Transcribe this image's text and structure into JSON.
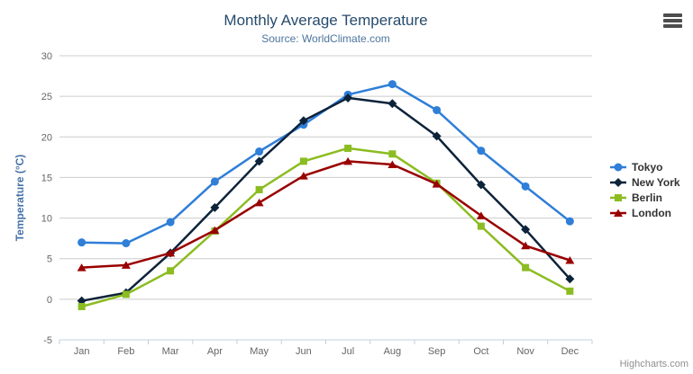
{
  "header": {
    "title": "Monthly Average Temperature",
    "subtitle": "Source: WorldClimate.com"
  },
  "credit_label": "Highcharts.com",
  "icons": {
    "context_menu": "hamburger-menu-icon"
  },
  "colors": {
    "title": "#274b6d",
    "subtitle": "#4d759e",
    "axis_title": "#4572a7",
    "tick_label": "#666666",
    "grid_line": "#cccccc",
    "axis_line": "#c0d0e0",
    "legend_text": "#333333",
    "credit": "#909090",
    "menu_icon": "#4d4d4d"
  },
  "chart_data": {
    "type": "line",
    "title": "Monthly Average Temperature",
    "subtitle": "Source: WorldClimate.com",
    "xlabel": "",
    "ylabel": "Temperature (°C)",
    "ylim": [
      -5,
      30
    ],
    "yticks": [
      -5,
      0,
      5,
      10,
      15,
      20,
      25,
      30
    ],
    "grid": true,
    "legend_position": "right",
    "categories": [
      "Jan",
      "Feb",
      "Mar",
      "Apr",
      "May",
      "Jun",
      "Jul",
      "Aug",
      "Sep",
      "Oct",
      "Nov",
      "Dec"
    ],
    "series": [
      {
        "name": "Tokyo",
        "color": "#2f7ed8",
        "marker": "circle",
        "values": [
          7.0,
          6.9,
          9.5,
          14.5,
          18.2,
          21.5,
          25.2,
          26.5,
          23.3,
          18.3,
          13.9,
          9.6
        ]
      },
      {
        "name": "New York",
        "color": "#0d233a",
        "marker": "diamond",
        "values": [
          -0.2,
          0.8,
          5.7,
          11.3,
          17.0,
          22.0,
          24.8,
          24.1,
          20.1,
          14.1,
          8.6,
          2.5
        ]
      },
      {
        "name": "Berlin",
        "color": "#8bbc21",
        "marker": "square",
        "values": [
          -0.9,
          0.6,
          3.5,
          8.4,
          13.5,
          17.0,
          18.6,
          17.9,
          14.3,
          9.0,
          3.9,
          1.0
        ]
      },
      {
        "name": "London",
        "color": "#990000",
        "marker": "triangle",
        "values": [
          3.9,
          4.2,
          5.7,
          8.5,
          11.9,
          15.2,
          17.0,
          16.6,
          14.2,
          10.3,
          6.6,
          4.8
        ]
      }
    ]
  }
}
